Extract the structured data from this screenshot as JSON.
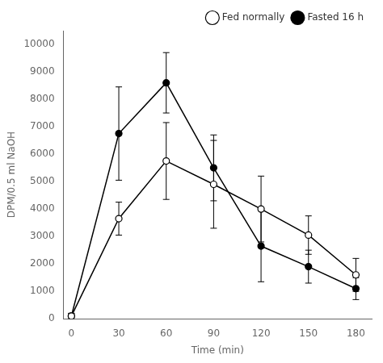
{
  "chart_data": {
    "type": "line",
    "x": [
      0,
      30,
      60,
      90,
      120,
      150,
      180
    ],
    "series": [
      {
        "name": "Fed normally",
        "color": "black",
        "marker": "open_circle",
        "line_style": "solid",
        "values": [
          100,
          3650,
          5750,
          4900,
          4000,
          3050,
          1600
        ],
        "errors": [
          100,
          600,
          1400,
          1600,
          1200,
          700,
          600
        ]
      },
      {
        "name": "Fasted 16 h",
        "color": "black",
        "marker": "circle",
        "line_style": "solid",
        "values": [
          100,
          6750,
          8600,
          5500,
          2650,
          1900,
          1100
        ],
        "errors": [
          100,
          1700,
          1100,
          1200,
          1300,
          600,
          400
        ]
      }
    ],
    "xlabel": "Time (min)",
    "ylabel": "DPM/0.5 ml NaOH",
    "xlim": [
      -5,
      190
    ],
    "xticks": [
      0,
      30,
      60,
      90,
      120,
      150,
      180
    ],
    "ylim": [
      0,
      10500
    ],
    "yticks": [
      0,
      1000,
      2000,
      3000,
      4000,
      5000,
      6000,
      7000,
      8000,
      9000,
      10000
    ],
    "grid": false,
    "legend": "upper right"
  }
}
